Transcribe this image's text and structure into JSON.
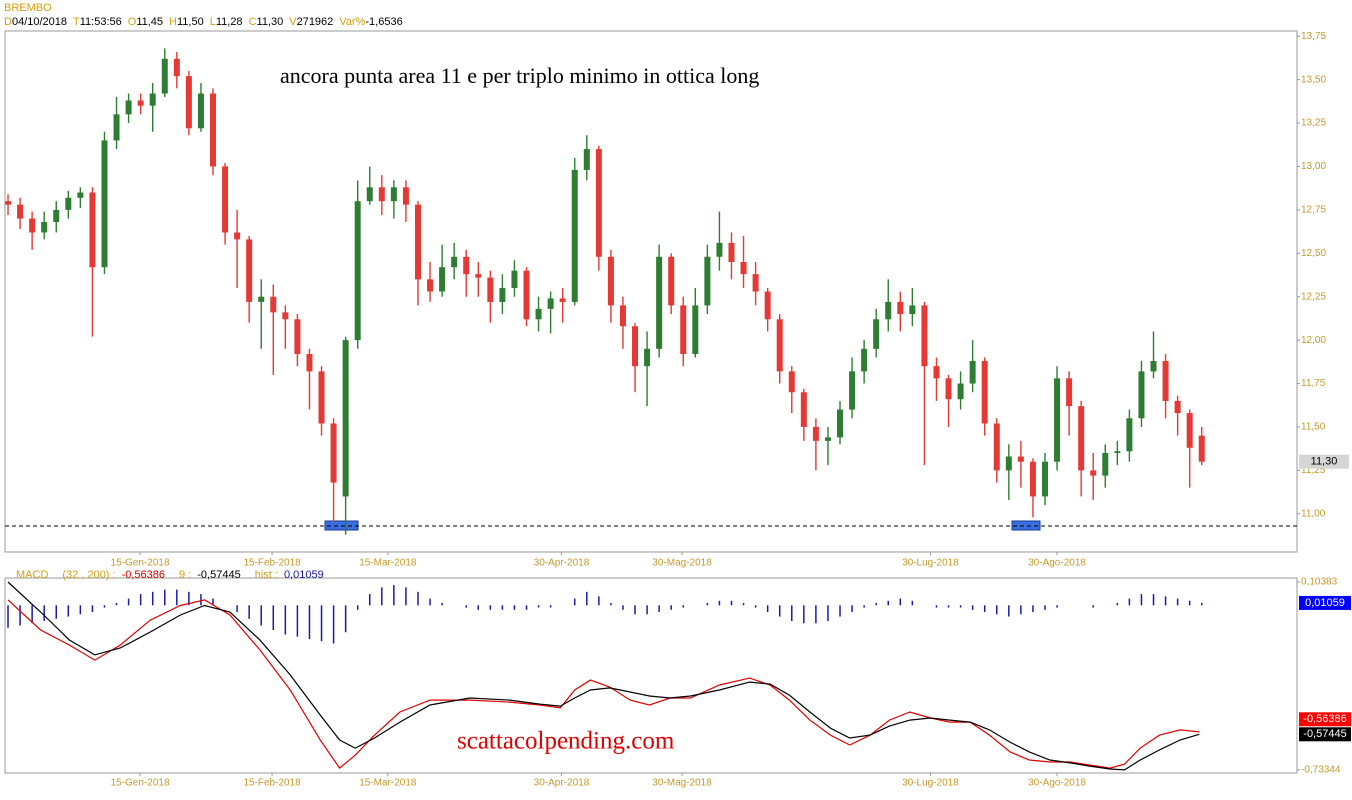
{
  "header": {
    "symbol": "BREMBO",
    "fields": [
      {
        "key": "D",
        "value": "04/10/2018"
      },
      {
        "key": "T",
        "value": "11:53:56"
      },
      {
        "key": "O",
        "value": {
          "value": 11.45,
          "label": "11,45"
        }
      },
      {
        "key": "H",
        "value": {
          "value": 11.5,
          "label": "11,50"
        }
      },
      {
        "key": "L",
        "value": {
          "value": 11.28,
          "label": "11,28"
        }
      },
      {
        "key": "C",
        "value": {
          "value": 11.3,
          "label": "11,30"
        }
      },
      {
        "key": "V",
        "value": 271962
      },
      {
        "key": "Var%",
        "value": {
          "value": -1.6536,
          "label": "-1,6536"
        }
      }
    ]
  },
  "chart_data": [
    {
      "type": "candlestick",
      "annotation": "ancora punta area 11 e per triplo minimo in ottica long",
      "up_color": "#2e7d32",
      "down_color": "#e53935",
      "open": [
        12.8,
        12.78,
        12.7,
        12.62,
        12.68,
        12.75,
        12.82,
        12.85,
        12.42,
        13.15,
        13.3,
        13.38,
        13.35,
        13.42,
        13.62,
        13.52,
        13.22,
        13.42,
        13.0,
        12.62,
        12.58,
        12.22,
        12.25,
        12.16,
        12.12,
        11.92,
        11.82,
        11.52,
        11.1,
        12.0,
        12.8,
        12.88,
        12.8,
        12.88,
        12.78,
        12.35,
        12.28,
        12.42,
        12.48,
        12.38,
        12.36,
        12.22,
        12.3,
        12.4,
        12.12,
        12.18,
        12.24,
        12.22,
        12.98,
        13.1,
        12.48,
        12.2,
        12.08,
        11.85,
        11.95,
        12.48,
        12.2,
        11.92,
        12.2,
        12.48,
        12.56,
        12.45,
        12.38,
        12.28,
        12.12,
        11.82,
        11.7,
        11.5,
        11.42,
        11.44,
        11.6,
        11.82,
        11.95,
        12.12,
        12.22,
        12.15,
        12.2,
        11.85,
        11.78,
        11.66,
        11.75,
        11.88,
        11.52,
        11.25,
        11.33,
        11.3,
        11.1,
        11.3,
        11.78,
        11.62,
        11.25,
        11.22,
        11.35,
        11.36,
        11.55,
        11.82,
        11.88,
        11.65,
        11.58,
        11.45
      ],
      "high": [
        12.84,
        12.82,
        12.74,
        12.74,
        12.8,
        12.86,
        12.88,
        12.88,
        13.2,
        13.4,
        13.42,
        13.42,
        13.48,
        13.68,
        13.66,
        13.55,
        13.48,
        13.45,
        13.02,
        12.75,
        12.6,
        12.35,
        12.32,
        12.2,
        12.15,
        11.95,
        11.85,
        11.55,
        12.02,
        12.92,
        13.0,
        12.95,
        12.92,
        12.92,
        12.8,
        12.45,
        12.55,
        12.56,
        12.52,
        12.45,
        12.4,
        12.38,
        12.46,
        12.42,
        12.25,
        12.28,
        12.3,
        13.05,
        13.18,
        13.12,
        12.52,
        12.25,
        12.1,
        12.05,
        12.55,
        12.5,
        12.25,
        12.3,
        12.55,
        12.74,
        12.62,
        12.6,
        12.45,
        12.3,
        12.15,
        11.85,
        11.72,
        11.55,
        11.5,
        11.65,
        11.9,
        12.0,
        12.18,
        12.35,
        12.28,
        12.3,
        12.22,
        11.9,
        11.8,
        11.82,
        12.0,
        11.9,
        11.55,
        11.4,
        11.42,
        11.32,
        11.35,
        11.85,
        11.82,
        11.65,
        11.35,
        11.4,
        11.42,
        11.6,
        11.88,
        12.05,
        11.92,
        11.68,
        11.6,
        11.5
      ],
      "low": [
        12.72,
        12.64,
        12.52,
        12.58,
        12.62,
        12.7,
        12.76,
        12.02,
        12.38,
        13.1,
        13.25,
        13.3,
        13.2,
        13.4,
        13.45,
        13.18,
        13.2,
        12.95,
        12.55,
        12.3,
        12.1,
        11.95,
        11.8,
        11.95,
        11.85,
        11.6,
        11.45,
        10.95,
        10.88,
        11.95,
        12.78,
        12.72,
        12.7,
        12.68,
        12.2,
        12.22,
        12.25,
        12.35,
        12.25,
        12.25,
        12.1,
        12.15,
        12.25,
        12.08,
        12.05,
        12.04,
        12.1,
        12.2,
        12.92,
        12.4,
        12.1,
        11.95,
        11.7,
        11.62,
        11.9,
        12.15,
        11.85,
        11.9,
        12.15,
        12.4,
        12.35,
        12.3,
        12.2,
        12.05,
        11.75,
        11.58,
        11.42,
        11.25,
        11.28,
        11.4,
        11.55,
        11.75,
        11.9,
        12.05,
        12.05,
        12.08,
        11.28,
        11.65,
        11.5,
        11.6,
        11.7,
        11.45,
        11.18,
        11.08,
        11.15,
        10.98,
        11.05,
        11.25,
        11.45,
        11.1,
        11.08,
        11.15,
        11.28,
        11.3,
        11.5,
        11.78,
        11.55,
        11.45,
        11.15,
        11.28
      ],
      "close": [
        12.78,
        12.7,
        12.62,
        12.68,
        12.75,
        12.82,
        12.85,
        12.42,
        13.15,
        13.3,
        13.38,
        13.35,
        13.42,
        13.62,
        13.52,
        13.22,
        13.42,
        13.0,
        12.62,
        12.58,
        12.22,
        12.25,
        12.16,
        12.12,
        11.92,
        11.82,
        11.52,
        11.18,
        12.0,
        12.8,
        12.88,
        12.8,
        12.88,
        12.78,
        12.35,
        12.28,
        12.42,
        12.48,
        12.38,
        12.36,
        12.22,
        12.3,
        12.4,
        12.12,
        12.18,
        12.24,
        12.22,
        12.98,
        13.1,
        12.48,
        12.2,
        12.08,
        11.85,
        11.95,
        12.48,
        12.2,
        11.92,
        12.2,
        12.48,
        12.56,
        12.45,
        12.38,
        12.28,
        12.12,
        11.82,
        11.7,
        11.5,
        11.42,
        11.44,
        11.6,
        11.82,
        11.95,
        12.12,
        12.22,
        12.15,
        12.2,
        11.85,
        11.78,
        11.66,
        11.75,
        11.88,
        11.52,
        11.25,
        11.33,
        11.3,
        11.1,
        11.3,
        11.78,
        11.62,
        11.25,
        11.22,
        11.35,
        11.36,
        11.55,
        11.82,
        11.88,
        11.65,
        11.58,
        11.38,
        11.3
      ],
      "support_line": 10.93,
      "ylim": [
        10.78,
        13.78
      ],
      "yticks": [
        {
          "value": 11.0,
          "label": "11,00"
        },
        {
          "value": 11.25,
          "label": "11,25"
        },
        {
          "value": 11.5,
          "label": "11,50"
        },
        {
          "value": 11.75,
          "label": "11,75"
        },
        {
          "value": 12.0,
          "label": "12,00"
        },
        {
          "value": 12.25,
          "label": "12,25"
        },
        {
          "value": 12.5,
          "label": "12,50"
        },
        {
          "value": 12.75,
          "label": "12,75"
        },
        {
          "value": 13.0,
          "label": "13,00"
        },
        {
          "value": 13.25,
          "label": "13,25"
        },
        {
          "value": 13.5,
          "label": "13,50"
        },
        {
          "value": 13.75,
          "label": "13,75"
        }
      ],
      "xlim": [
        -0.25,
        106.9
      ],
      "xticks": [
        {
          "value": 10.95,
          "label": "15-Gen-2018"
        },
        {
          "value": 21.9,
          "label": "15-Feb-2018"
        },
        {
          "value": 31.5,
          "label": "15-Mar-2018"
        },
        {
          "value": 45.9,
          "label": "30-Apr-2018"
        },
        {
          "value": 55.9,
          "label": "30-Mag-2018"
        },
        {
          "value": 76.5,
          "label": "30-Lug-2018"
        },
        {
          "value": 87.0,
          "label": "30-Ago-2018"
        }
      ]
    },
    {
      "type": "macd",
      "name": "MACD",
      "annotation": "scattacolpending.com",
      "x": [
        0,
        2.7,
        5.1,
        7.2,
        9.3,
        11.8,
        14.3,
        16.3,
        18.4,
        20.9,
        23.4,
        25.9,
        27.5,
        28.8,
        30.4,
        32.5,
        35,
        38.3,
        41.6,
        44.1,
        45.8,
        47,
        48.3,
        49.9,
        51.6,
        53.2,
        54.9,
        56.6,
        59,
        61.5,
        63.2,
        64.8,
        66.5,
        68.2,
        69.8,
        71.5,
        73.1,
        74.8,
        76.5,
        78.1,
        79.8,
        81.4,
        83.1,
        84.7,
        86.4,
        88.1,
        89.7,
        91.4,
        92.6,
        93.9,
        95.5,
        97.2,
        98.8
      ],
      "series": [
        {
          "name": "(32 , 200) :",
          "color": "#e00000",
          "last": {
            "value": -0.56386,
            "label": "-0,56386"
          },
          "values": [
            0.024,
            -0.11,
            -0.177,
            -0.244,
            -0.177,
            -0.066,
            -0.001,
            0.024,
            -0.043,
            -0.199,
            -0.377,
            -0.6,
            -0.725,
            -0.667,
            -0.578,
            -0.475,
            -0.422,
            -0.422,
            -0.431,
            -0.444,
            -0.457,
            -0.377,
            -0.333,
            -0.364,
            -0.422,
            -0.444,
            -0.413,
            -0.413,
            -0.355,
            -0.324,
            -0.355,
            -0.422,
            -0.511,
            -0.578,
            -0.622,
            -0.578,
            -0.511,
            -0.475,
            -0.502,
            -0.52,
            -0.52,
            -0.578,
            -0.653,
            -0.689,
            -0.698,
            -0.698,
            -0.711,
            -0.725,
            -0.707,
            -0.636,
            -0.578,
            -0.555,
            -0.56386
          ]
        },
        {
          "name": "9 :",
          "color": "#000000",
          "last": {
            "value": -0.57445,
            "label": "-0,57445"
          },
          "values": [
            0.104,
            -0.03,
            -0.155,
            -0.221,
            -0.19,
            -0.119,
            -0.043,
            -0.001,
            -0.03,
            -0.155,
            -0.31,
            -0.489,
            -0.6,
            -0.636,
            -0.591,
            -0.52,
            -0.444,
            -0.413,
            -0.422,
            -0.44,
            -0.449,
            -0.413,
            -0.377,
            -0.368,
            -0.386,
            -0.404,
            -0.413,
            -0.404,
            -0.377,
            -0.342,
            -0.351,
            -0.4,
            -0.475,
            -0.547,
            -0.591,
            -0.578,
            -0.538,
            -0.511,
            -0.502,
            -0.511,
            -0.52,
            -0.555,
            -0.609,
            -0.653,
            -0.689,
            -0.702,
            -0.716,
            -0.729,
            -0.733,
            -0.689,
            -0.644,
            -0.6,
            -0.57445
          ]
        }
      ],
      "hist": {
        "name": "hist :",
        "color": "#1a1aa8",
        "last": {
          "value": 0.01059,
          "label": "0,01059"
        },
        "values": [
          -0.1,
          -0.09,
          -0.08,
          -0.07,
          -0.06,
          -0.05,
          -0.04,
          -0.03,
          -0.01,
          0.01,
          0.03,
          0.05,
          0.06,
          0.07,
          0.07,
          0.06,
          0.05,
          0.03,
          0.0,
          -0.03,
          -0.06,
          -0.09,
          -0.11,
          -0.13,
          -0.14,
          -0.15,
          -0.16,
          -0.17,
          -0.12,
          -0.02,
          0.05,
          0.08,
          0.09,
          0.08,
          0.06,
          0.03,
          0.01,
          0.0,
          -0.01,
          -0.02,
          -0.02,
          -0.02,
          -0.02,
          -0.02,
          -0.01,
          -0.01,
          0.0,
          0.03,
          0.06,
          0.04,
          0.01,
          -0.02,
          -0.04,
          -0.04,
          -0.03,
          -0.02,
          -0.01,
          0.0,
          0.01,
          0.02,
          0.02,
          0.01,
          -0.01,
          -0.03,
          -0.05,
          -0.07,
          -0.08,
          -0.08,
          -0.07,
          -0.05,
          -0.03,
          -0.01,
          0.01,
          0.02,
          0.03,
          0.02,
          0.0,
          -0.01,
          -0.01,
          -0.01,
          -0.02,
          -0.03,
          -0.04,
          -0.05,
          -0.04,
          -0.03,
          -0.02,
          -0.01,
          0.0,
          0.0,
          -0.01,
          0.0,
          0.01,
          0.03,
          0.05,
          0.05,
          0.04,
          0.03,
          0.02,
          0.01059
        ]
      },
      "ylim": [
        -0.7468,
        0.1216
      ],
      "yticks": [
        {
          "value": 0.10383,
          "label": "0,10383"
        },
        {
          "value": -0.73344,
          "label": "-0,73344"
        }
      ],
      "xlim": [
        -0.25,
        106.9
      ],
      "xticks": [
        {
          "value": 10.95,
          "label": "15-Gen-2018"
        },
        {
          "value": 21.9,
          "label": "15-Feb-2018"
        },
        {
          "value": 31.5,
          "label": "15-Mar-2018"
        },
        {
          "value": 45.9,
          "label": "30-Apr-2018"
        },
        {
          "value": 55.9,
          "label": "30-Mag-2018"
        },
        {
          "value": 76.5,
          "label": "30-Lug-2018"
        },
        {
          "value": 87.0,
          "label": "30-Ago-2018"
        }
      ]
    }
  ]
}
